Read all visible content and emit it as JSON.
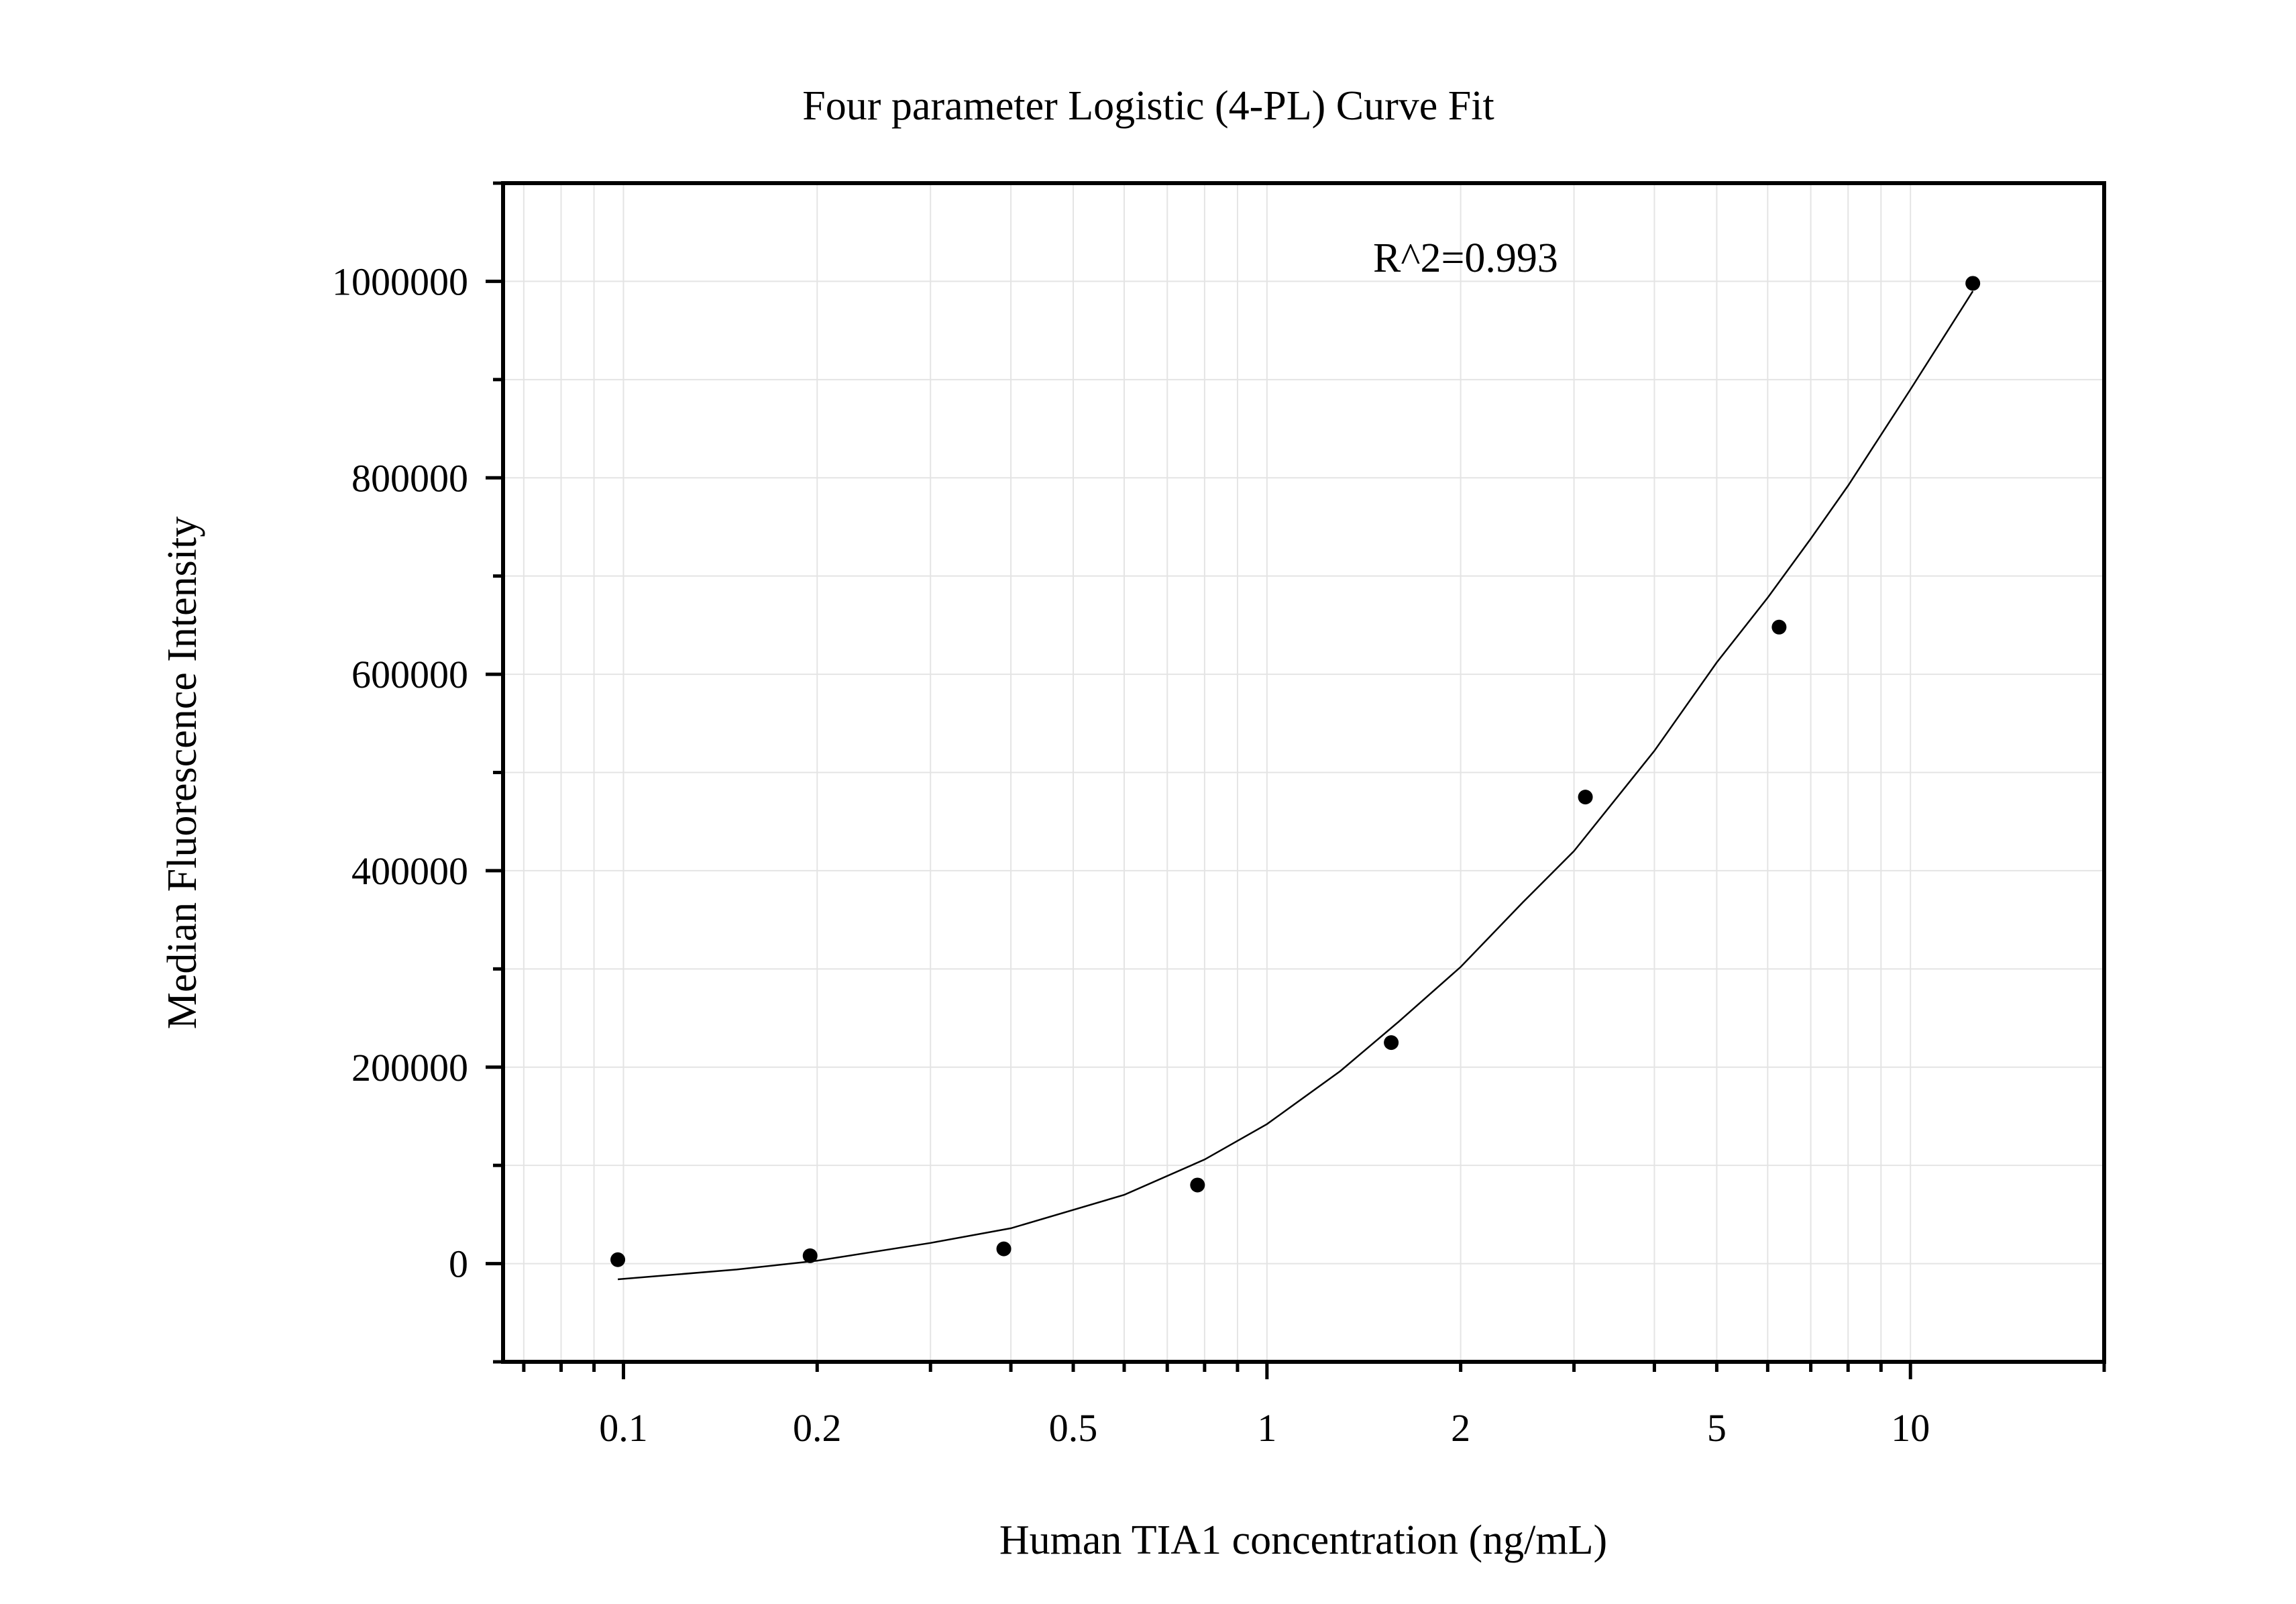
{
  "chart_data": {
    "type": "scatter",
    "title": "Four parameter Logistic (4-PL) Curve Fit",
    "xlabel": "Human TIA1 concentration (ng/mL)",
    "ylabel": "Median Fluorescence Intensity",
    "x_scale": "log",
    "xlim": [
      0.065,
      20
    ],
    "ylim": [
      -100000,
      1100000
    ],
    "x_ticks": [
      {
        "value": 0.1,
        "label": "0.1"
      },
      {
        "value": 0.2,
        "label": "0.2"
      },
      {
        "value": 0.5,
        "label": "0.5"
      },
      {
        "value": 1,
        "label": "1"
      },
      {
        "value": 2,
        "label": "2"
      },
      {
        "value": 5,
        "label": "5"
      },
      {
        "value": 10,
        "label": "10"
      }
    ],
    "y_ticks": [
      {
        "value": 0,
        "label": "0"
      },
      {
        "value": 200000,
        "label": "200000"
      },
      {
        "value": 400000,
        "label": "400000"
      },
      {
        "value": 600000,
        "label": "600000"
      },
      {
        "value": 800000,
        "label": "800000"
      },
      {
        "value": 1000000,
        "label": "1000000"
      }
    ],
    "grid": true,
    "annotation": "R^2=0.993",
    "series": [
      {
        "type": "scatter",
        "x": [
          0.098,
          0.195,
          0.39,
          0.78,
          1.56,
          3.125,
          6.25,
          12.5
        ],
        "y": [
          4000,
          8000,
          15000,
          80000,
          225000,
          475000,
          648000,
          998000
        ]
      },
      {
        "type": "line",
        "x": [
          0.098,
          0.15,
          0.2,
          0.3,
          0.4,
          0.6,
          0.8,
          1.0,
          1.3,
          1.6,
          2.0,
          2.5,
          3.0,
          4.0,
          5.0,
          6.0,
          7.0,
          8.0,
          10.0,
          12.5
        ],
        "y": [
          -16000,
          -6000,
          3000,
          21000,
          36000,
          70000,
          106000,
          142000,
          196000,
          246000,
          302000,
          368000,
          420000,
          522000,
          612000,
          678000,
          738000,
          792000,
          890000,
          990000
        ]
      }
    ]
  }
}
